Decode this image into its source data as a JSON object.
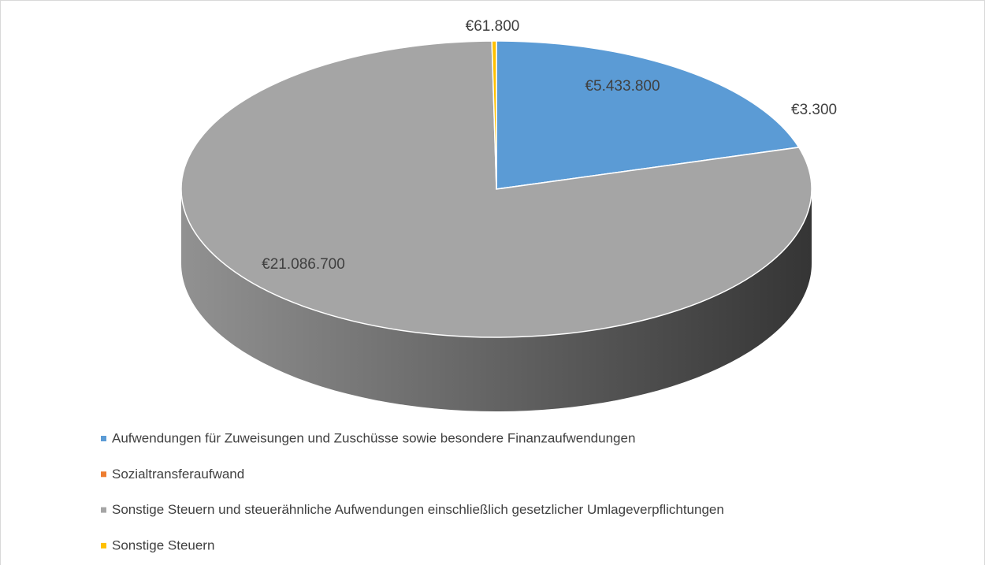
{
  "chart_data": {
    "type": "pie3d",
    "categories": [
      "Aufwendungen für Zuweisungen und Zuschüsse sowie besondere Finanzaufwendungen",
      "Sozialtransferaufwand",
      "Sonstige Steuern und steuerähnliche Aufwendungen einschließlich gesetzlicher Umlageverpflichtungen",
      "Sonstige Steuern"
    ],
    "values": [
      5433800,
      3300,
      21086700,
      61800
    ],
    "value_labels": [
      "€5.433.800",
      "€3.300",
      "€21.086.700",
      "€61.800"
    ],
    "colors": [
      "#5b9bd5",
      "#ed7d31",
      "#a5a5a5",
      "#ffc000"
    ],
    "legend": "bottom"
  }
}
